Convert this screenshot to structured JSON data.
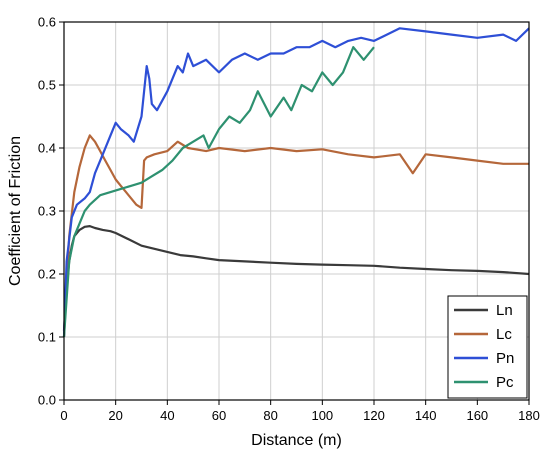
{
  "chart_data": {
    "type": "line",
    "xlabel": "Distance (m)",
    "ylabel": "Coefficient of Friction",
    "xlim": [
      0,
      180
    ],
    "ylim": [
      0,
      0.6
    ],
    "xticks": [
      "0",
      "20",
      "40",
      "60",
      "80",
      "100",
      "120",
      "140",
      "160",
      "180"
    ],
    "yticks": [
      "0.0",
      "0.1",
      "0.2",
      "0.3",
      "0.4",
      "0.5",
      "0.6"
    ],
    "grid": true,
    "legend_position": "bottom-right",
    "series": [
      {
        "name": "Ln",
        "color": "#3a3a3a",
        "x": [
          0,
          1,
          2,
          3,
          4,
          6,
          8,
          10,
          12,
          15,
          18,
          20,
          25,
          30,
          35,
          40,
          45,
          50,
          55,
          60,
          70,
          80,
          90,
          100,
          110,
          120,
          130,
          140,
          150,
          160,
          170,
          180
        ],
        "y": [
          0.11,
          0.18,
          0.22,
          0.245,
          0.26,
          0.27,
          0.275,
          0.276,
          0.273,
          0.27,
          0.268,
          0.265,
          0.255,
          0.245,
          0.24,
          0.235,
          0.23,
          0.228,
          0.225,
          0.222,
          0.22,
          0.218,
          0.216,
          0.215,
          0.214,
          0.213,
          0.21,
          0.208,
          0.206,
          0.205,
          0.203,
          0.2
        ]
      },
      {
        "name": "Lc",
        "color": "#b5673a",
        "x": [
          0,
          2,
          4,
          6,
          8,
          10,
          12,
          14,
          16,
          18,
          20,
          22,
          24,
          26,
          28,
          30,
          31,
          32,
          35,
          40,
          44,
          48,
          55,
          60,
          70,
          80,
          90,
          100,
          110,
          120,
          130,
          135,
          140,
          150,
          160,
          170,
          180
        ],
        "y": [
          0.1,
          0.26,
          0.33,
          0.37,
          0.4,
          0.42,
          0.41,
          0.395,
          0.38,
          0.365,
          0.35,
          0.34,
          0.33,
          0.32,
          0.31,
          0.305,
          0.38,
          0.385,
          0.39,
          0.395,
          0.41,
          0.4,
          0.395,
          0.4,
          0.395,
          0.4,
          0.395,
          0.398,
          0.39,
          0.385,
          0.39,
          0.36,
          0.39,
          0.385,
          0.38,
          0.375,
          0.375
        ]
      },
      {
        "name": "Pn",
        "color": "#2e4fd6",
        "x": [
          0,
          1,
          3,
          5,
          8,
          10,
          12,
          15,
          18,
          20,
          22,
          25,
          27,
          30,
          32,
          33,
          34,
          36,
          40,
          44,
          46,
          48,
          50,
          55,
          60,
          65,
          70,
          75,
          80,
          85,
          90,
          95,
          100,
          105,
          110,
          115,
          120,
          125,
          130,
          140,
          150,
          160,
          170,
          175,
          180
        ],
        "y": [
          0.1,
          0.22,
          0.29,
          0.31,
          0.32,
          0.33,
          0.36,
          0.39,
          0.42,
          0.44,
          0.43,
          0.42,
          0.41,
          0.45,
          0.53,
          0.51,
          0.47,
          0.46,
          0.49,
          0.53,
          0.52,
          0.55,
          0.53,
          0.54,
          0.52,
          0.54,
          0.55,
          0.54,
          0.55,
          0.55,
          0.56,
          0.56,
          0.57,
          0.56,
          0.57,
          0.575,
          0.57,
          0.58,
          0.59,
          0.585,
          0.58,
          0.575,
          0.58,
          0.57,
          0.59
        ]
      },
      {
        "name": "Pc",
        "color": "#2e9170",
        "x": [
          0,
          2,
          4,
          6,
          8,
          10,
          14,
          18,
          22,
          26,
          30,
          34,
          38,
          42,
          46,
          50,
          54,
          56,
          60,
          64,
          68,
          72,
          75,
          80,
          85,
          88,
          92,
          96,
          100,
          104,
          108,
          112,
          116,
          120
        ],
        "y": [
          0.1,
          0.22,
          0.26,
          0.28,
          0.3,
          0.31,
          0.325,
          0.33,
          0.335,
          0.34,
          0.345,
          0.355,
          0.365,
          0.38,
          0.4,
          0.41,
          0.42,
          0.4,
          0.43,
          0.45,
          0.44,
          0.46,
          0.49,
          0.45,
          0.48,
          0.46,
          0.5,
          0.49,
          0.52,
          0.5,
          0.52,
          0.56,
          0.54,
          0.56
        ]
      }
    ]
  }
}
